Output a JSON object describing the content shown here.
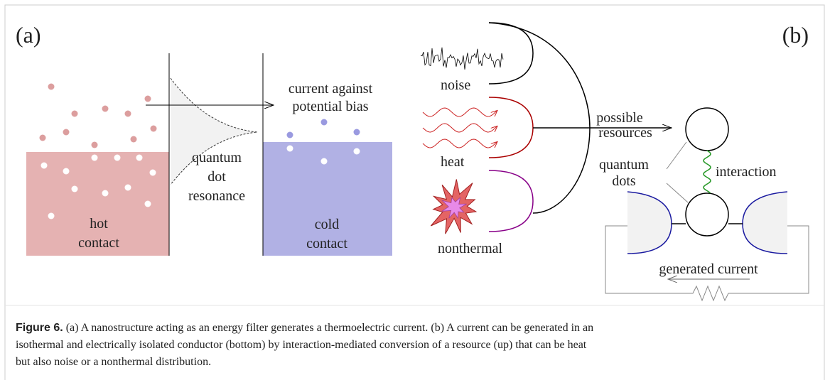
{
  "panel_a": {
    "label": "(a)",
    "arrow_label": [
      "current against",
      "potential bias"
    ],
    "resonance_label": [
      "quantum",
      "dot",
      "resonance"
    ],
    "hot_label": [
      "hot",
      "contact"
    ],
    "cold_label": [
      "cold",
      "contact"
    ]
  },
  "panel_b": {
    "label": "(b)",
    "resources": [
      "noise",
      "heat",
      "nonthermal"
    ],
    "arrow_label": [
      "possible",
      "resources"
    ],
    "dots_label": [
      "quantum",
      "dots"
    ],
    "interaction_label": "interaction",
    "current_label": "generated current"
  },
  "caption": {
    "label": "Figure 6.",
    "lines": [
      "(a) A nanostructure acting as an energy filter generates a thermoelectric current. (b) A current can be generated in an",
      "isothermal and electrically isolated conductor (bottom) by interaction-mediated conversion of a resource (up) that can be heat",
      "but also noise or a nonthermal distribution."
    ]
  }
}
